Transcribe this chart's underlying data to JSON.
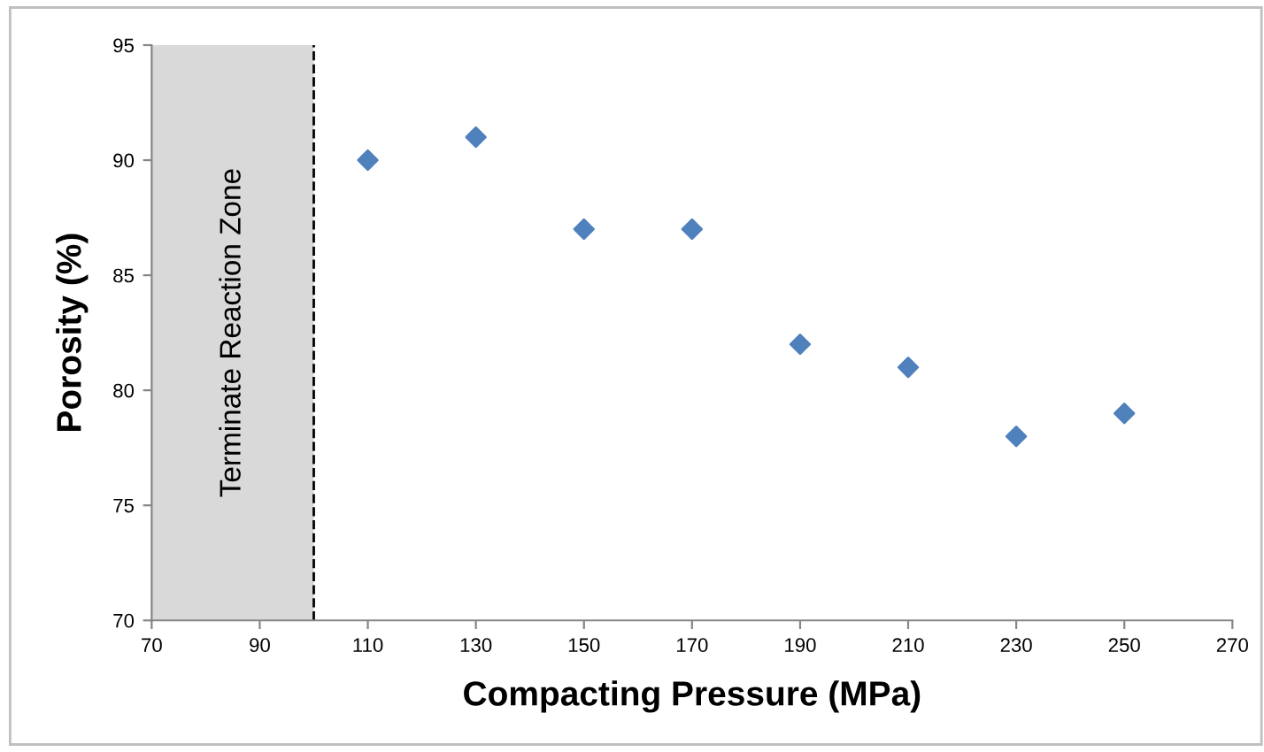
{
  "chart_data": {
    "type": "scatter",
    "xlabel": "Compacting Pressure (MPa)",
    "ylabel": "Porosity (%)",
    "x": [
      110,
      130,
      150,
      170,
      190,
      210,
      230,
      250
    ],
    "series": [
      {
        "color": "#4f81bd",
        "values": [
          90,
          91,
          87,
          87,
          82,
          81,
          78,
          79
        ]
      }
    ],
    "marker": "diamond",
    "grid": false,
    "legend": false,
    "xlim": [
      70,
      270
    ],
    "xticks": [
      70,
      90,
      110,
      130,
      150,
      170,
      190,
      210,
      230,
      250,
      270
    ],
    "ylim": [
      70,
      95
    ],
    "yticks": [
      70,
      75,
      80,
      85,
      90,
      95
    ],
    "bands": [
      {
        "axis": "x",
        "from": 70,
        "to": 100,
        "label": "Terminate Reaction Zone",
        "color": "#d9d9d9"
      }
    ],
    "ref_lines": [
      {
        "axis": "x",
        "value": 100,
        "line_style": "dashed",
        "color": "#000000"
      }
    ]
  }
}
